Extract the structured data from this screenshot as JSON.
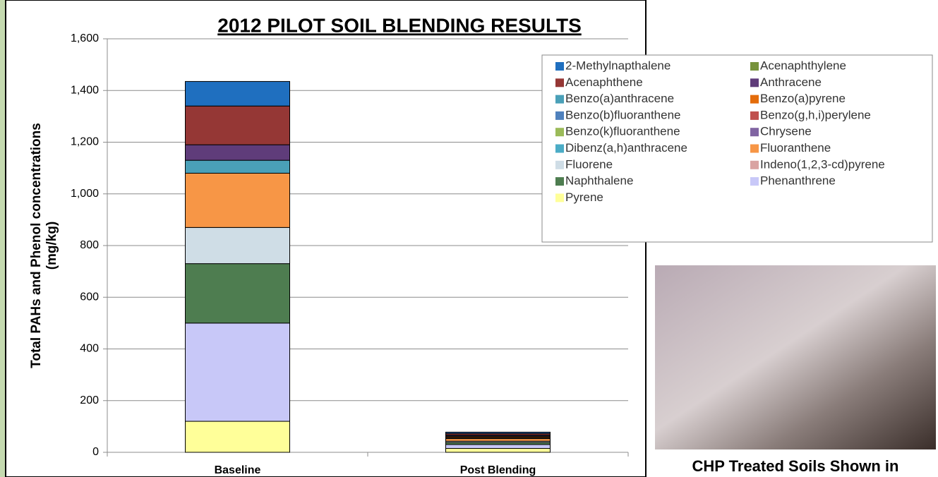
{
  "chart_data": {
    "type": "stacked_bar",
    "title": "2012 PILOT SOIL BLENDING RESULTS",
    "y_label": [
      "Total PAHs and Phenol concentrations",
      "(mg/kg)"
    ],
    "categories": [
      "Baseline",
      "Post Blending"
    ],
    "ylim": [
      0,
      1600
    ],
    "yticks": [
      0,
      200,
      400,
      600,
      800,
      {
        "value": 1000,
        "label": "1,000"
      },
      {
        "value": 1200,
        "label": "1,200"
      },
      {
        "value": 1400,
        "label": "1,400"
      },
      {
        "value": 1600,
        "label": "1,600"
      }
    ],
    "grid": true,
    "series": [
      {
        "name": "2-Methylnapthalene",
        "color": "#1f6fbf",
        "values": [
          95,
          5
        ]
      },
      {
        "name": "Acenaphthylene",
        "color": "#77933c",
        "values": [
          0,
          0
        ]
      },
      {
        "name": "Acenaphthene",
        "color": "#953735",
        "values": [
          150,
          6
        ]
      },
      {
        "name": "Anthracene",
        "color": "#5f3c7a",
        "values": [
          60,
          4
        ]
      },
      {
        "name": "Benzo(a)anthracene",
        "color": "#4aa0b8",
        "values": [
          50,
          3
        ]
      },
      {
        "name": "Benzo(a)pyrene",
        "color": "#e46c0a",
        "values": [
          0,
          4
        ]
      },
      {
        "name": "Benzo(b)fluoranthene",
        "color": "#4f81bd",
        "values": [
          0,
          3
        ]
      },
      {
        "name": "Benzo(g,h,i)perylene",
        "color": "#c0504d",
        "values": [
          0,
          0
        ]
      },
      {
        "name": "Benzo(k)fluoranthene",
        "color": "#9bbb59",
        "values": [
          0,
          0
        ]
      },
      {
        "name": "Chrysene",
        "color": "#8064a2",
        "values": [
          0,
          0
        ]
      },
      {
        "name": "Dibenz(a,h)anthracene",
        "color": "#4bacc6",
        "values": [
          0,
          0
        ]
      },
      {
        "name": "Fluoranthene",
        "color": "#f79646",
        "values": [
          210,
          10
        ]
      },
      {
        "name": "Fluorene",
        "color": "#cfdde6",
        "values": [
          140,
          5
        ]
      },
      {
        "name": "Indeno(1,2,3-cd)pyrene",
        "color": "#d9a3a2",
        "values": [
          0,
          0
        ]
      },
      {
        "name": "Naphthalene",
        "color": "#4e7d50",
        "values": [
          230,
          8
        ]
      },
      {
        "name": "Phenanthrene",
        "color": "#c8c8f8",
        "values": [
          380,
          15
        ]
      },
      {
        "name": "Pyrene",
        "color": "#ffff99",
        "values": [
          120,
          15
        ]
      }
    ],
    "photo_caption": "CHP Treated Soils Shown in"
  }
}
